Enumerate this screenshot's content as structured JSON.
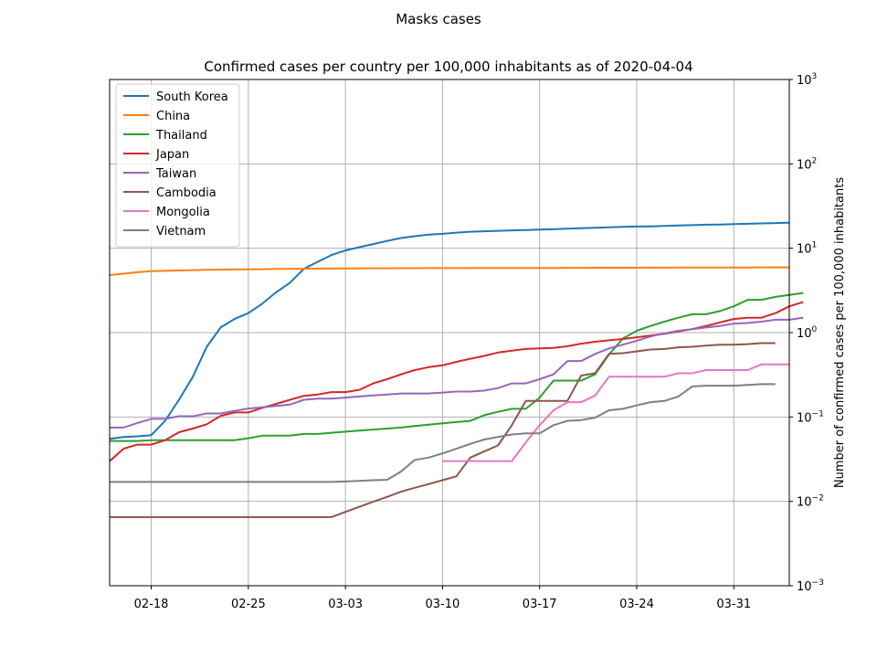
{
  "suptitle": "Masks cases",
  "chart_data": {
    "type": "line",
    "title": "Confirmed cases per country per 100,000 inhabitants as of 2020-04-04",
    "xlabel": "",
    "ylabel": "Number of confirmed cases per 100,000 inhabitants",
    "y_scale": "log",
    "y_axis_side": "right",
    "ylim": [
      0.001,
      1000
    ],
    "xlim": [
      "2020-02-15",
      "2020-04-04"
    ],
    "x_ticks": [
      {
        "date": "2020-02-18",
        "label": "02-18"
      },
      {
        "date": "2020-02-25",
        "label": "02-25"
      },
      {
        "date": "2020-03-03",
        "label": "03-03"
      },
      {
        "date": "2020-03-10",
        "label": "03-10"
      },
      {
        "date": "2020-03-17",
        "label": "03-17"
      },
      {
        "date": "2020-03-24",
        "label": "03-24"
      },
      {
        "date": "2020-03-31",
        "label": "03-31"
      }
    ],
    "y_ticks": [
      {
        "value": 0.001,
        "base": "10",
        "exp": "−3"
      },
      {
        "value": 0.01,
        "base": "10",
        "exp": "−2"
      },
      {
        "value": 0.1,
        "base": "10",
        "exp": "−1"
      },
      {
        "value": 1,
        "base": "10",
        "exp": "0"
      },
      {
        "value": 10,
        "base": "10",
        "exp": "1"
      },
      {
        "value": 100,
        "base": "10",
        "exp": "2"
      },
      {
        "value": 1000,
        "base": "10",
        "exp": "3"
      }
    ],
    "grid": true,
    "legend_position": "upper left",
    "series": [
      {
        "name": "South Korea",
        "color": "#1f77b4",
        "x_start": "2020-02-15",
        "values": [
          0.055,
          0.058,
          0.059,
          0.061,
          0.09,
          0.16,
          0.3,
          0.68,
          1.15,
          1.45,
          1.7,
          2.2,
          3.0,
          3.9,
          5.7,
          6.9,
          8.3,
          9.4,
          10.3,
          11.2,
          12.2,
          13.2,
          13.9,
          14.5,
          14.8,
          15.3,
          15.7,
          15.9,
          16.1,
          16.3,
          16.4,
          16.6,
          16.8,
          17.1,
          17.3,
          17.5,
          17.7,
          17.9,
          18.1,
          18.2,
          18.4,
          18.6,
          18.8,
          19.0,
          19.1,
          19.3,
          19.5,
          19.7,
          19.9,
          20.1
        ]
      },
      {
        "name": "China",
        "color": "#ff7f0e",
        "x_start": "2020-02-15",
        "values": [
          4.8,
          5.0,
          5.2,
          5.35,
          5.4,
          5.45,
          5.5,
          5.55,
          5.58,
          5.6,
          5.62,
          5.65,
          5.68,
          5.7,
          5.72,
          5.74,
          5.75,
          5.76,
          5.77,
          5.78,
          5.79,
          5.8,
          5.8,
          5.81,
          5.81,
          5.82,
          5.82,
          5.83,
          5.83,
          5.84,
          5.84,
          5.85,
          5.85,
          5.86,
          5.86,
          5.87,
          5.87,
          5.88,
          5.88,
          5.89,
          5.89,
          5.9,
          5.9,
          5.91,
          5.91,
          5.92,
          5.92,
          5.93,
          5.93,
          5.94
        ]
      },
      {
        "name": "Thailand",
        "color": "#2ca02c",
        "x_start": "2020-02-15",
        "values": [
          0.052,
          0.052,
          0.052,
          0.053,
          0.053,
          0.053,
          0.053,
          0.053,
          0.053,
          0.053,
          0.056,
          0.06,
          0.06,
          0.06,
          0.063,
          0.063,
          0.065,
          0.067,
          0.069,
          0.071,
          0.073,
          0.075,
          0.078,
          0.081,
          0.084,
          0.087,
          0.09,
          0.105,
          0.115,
          0.125,
          0.125,
          0.17,
          0.27,
          0.27,
          0.27,
          0.32,
          0.55,
          0.85,
          1.05,
          1.2,
          1.35,
          1.5,
          1.65,
          1.65,
          1.8,
          2.05,
          2.45,
          2.45,
          2.65,
          2.8,
          2.95
        ]
      },
      {
        "name": "Japan",
        "color": "#d62728",
        "x_start": "2020-02-15",
        "values": [
          0.03,
          0.042,
          0.047,
          0.047,
          0.053,
          0.066,
          0.073,
          0.082,
          0.103,
          0.113,
          0.113,
          0.128,
          0.143,
          0.16,
          0.178,
          0.185,
          0.197,
          0.197,
          0.21,
          0.25,
          0.28,
          0.32,
          0.36,
          0.39,
          0.41,
          0.45,
          0.49,
          0.53,
          0.58,
          0.61,
          0.64,
          0.65,
          0.66,
          0.69,
          0.74,
          0.78,
          0.81,
          0.84,
          0.88,
          0.92,
          0.97,
          1.03,
          1.1,
          1.2,
          1.32,
          1.45,
          1.5,
          1.5,
          1.7,
          2.05,
          2.3
        ]
      },
      {
        "name": "Taiwan",
        "color": "#9467bd",
        "x_start": "2020-02-15",
        "values": [
          0.075,
          0.075,
          0.085,
          0.095,
          0.095,
          0.102,
          0.102,
          0.11,
          0.11,
          0.118,
          0.126,
          0.13,
          0.135,
          0.14,
          0.16,
          0.165,
          0.165,
          0.17,
          0.175,
          0.18,
          0.185,
          0.19,
          0.19,
          0.19,
          0.195,
          0.2,
          0.2,
          0.205,
          0.22,
          0.25,
          0.25,
          0.28,
          0.32,
          0.46,
          0.46,
          0.56,
          0.65,
          0.72,
          0.8,
          0.9,
          0.98,
          1.05,
          1.1,
          1.15,
          1.2,
          1.28,
          1.3,
          1.35,
          1.42,
          1.42,
          1.5
        ]
      },
      {
        "name": "Cambodia",
        "color": "#8c564b",
        "x_start": "2020-02-15",
        "values": [
          0.0065,
          0.0065,
          0.0065,
          0.0065,
          0.0065,
          0.0065,
          0.0065,
          0.0065,
          0.0065,
          0.0065,
          0.0065,
          0.0065,
          0.0065,
          0.0065,
          0.0065,
          0.0065,
          0.0065,
          0.0075,
          0.0086,
          0.0099,
          0.0113,
          0.013,
          0.0145,
          0.016,
          0.0178,
          0.0198,
          0.033,
          0.039,
          0.046,
          0.08,
          0.155,
          0.155,
          0.155,
          0.155,
          0.31,
          0.33,
          0.56,
          0.57,
          0.6,
          0.63,
          0.64,
          0.67,
          0.68,
          0.7,
          0.72,
          0.72,
          0.73,
          0.75,
          0.75
        ]
      },
      {
        "name": "Mongolia",
        "color": "#e377c2",
        "x_start": "2020-03-10",
        "values": [
          0.03,
          0.03,
          0.03,
          0.03,
          0.03,
          0.03,
          0.05,
          0.08,
          0.12,
          0.15,
          0.15,
          0.18,
          0.3,
          0.3,
          0.3,
          0.3,
          0.3,
          0.33,
          0.33,
          0.36,
          0.36,
          0.36,
          0.36,
          0.42,
          0.42,
          0.42
        ]
      },
      {
        "name": "Vietnam",
        "color": "#7f7f7f",
        "x_start": "2020-02-15",
        "values": [
          0.017,
          0.017,
          0.017,
          0.017,
          0.017,
          0.017,
          0.017,
          0.017,
          0.017,
          0.017,
          0.017,
          0.017,
          0.017,
          0.017,
          0.017,
          0.017,
          0.017,
          0.0172,
          0.0175,
          0.0178,
          0.018,
          0.0225,
          0.031,
          0.033,
          0.037,
          0.042,
          0.048,
          0.054,
          0.058,
          0.062,
          0.064,
          0.064,
          0.08,
          0.09,
          0.092,
          0.098,
          0.12,
          0.125,
          0.137,
          0.15,
          0.155,
          0.175,
          0.23,
          0.235,
          0.235,
          0.235,
          0.24,
          0.245,
          0.245
        ]
      }
    ]
  }
}
